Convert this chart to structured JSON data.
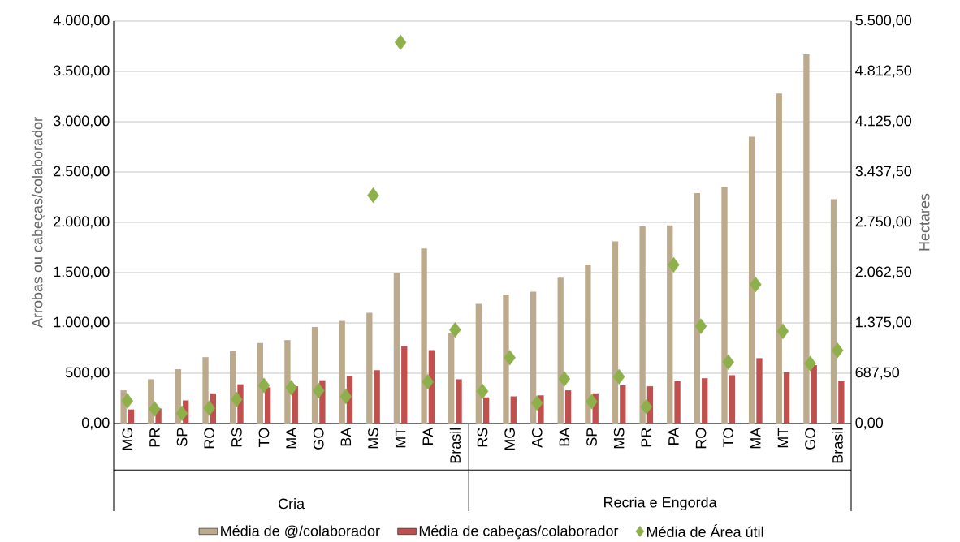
{
  "chart_data": {
    "type": "bar",
    "ylabel": "Arrobas ou cabeças/colaborador",
    "y2label": "Hectares",
    "categories": [
      "MG",
      "PR",
      "SP",
      "RO",
      "RS",
      "TO",
      "MA",
      "GO",
      "BA",
      "MS",
      "MT",
      "PA",
      "Brasil",
      "RS",
      "MG",
      "AC",
      "BA",
      "SP",
      "MS",
      "PR",
      "PA",
      "RO",
      "TO",
      "MA",
      "MT",
      "GO",
      "Brasil"
    ],
    "series": [
      {
        "name": "Média de @/colaborador",
        "color": "#bcaa8c",
        "values": [
          330,
          440,
          540,
          660,
          720,
          800,
          830,
          960,
          1020,
          1100,
          1500,
          1740,
          900,
          1190,
          1280,
          1310,
          1450,
          1580,
          1810,
          1960,
          1970,
          2290,
          2350,
          2850,
          3280,
          3670,
          2230
        ]
      },
      {
        "name": "Média de cabeças/colaborador",
        "color": "#c0504d",
        "values": [
          140,
          150,
          230,
          300,
          390,
          360,
          370,
          430,
          470,
          530,
          770,
          730,
          440,
          260,
          270,
          280,
          330,
          300,
          380,
          370,
          420,
          450,
          480,
          650,
          510,
          580,
          420
        ]
      },
      {
        "name": "Média de Área útil",
        "type": "scatter",
        "axis": "y2",
        "marker": "diamond",
        "color": "#8db04a",
        "values": [
          310,
          200,
          140,
          210,
          330,
          520,
          490,
          450,
          370,
          3120,
          5210,
          570,
          1280,
          440,
          900,
          280,
          610,
          300,
          640,
          230,
          2170,
          1330,
          840,
          1900,
          1260,
          820,
          1000
        ]
      }
    ],
    "ylim": [
      0,
      4000
    ],
    "yticks": [
      {
        "value": 0,
        "label": "0,00"
      },
      {
        "value": 500,
        "label": "500,00"
      },
      {
        "value": 1000,
        "label": "1.000,00"
      },
      {
        "value": 1500,
        "label": "1.500,00"
      },
      {
        "value": 2000,
        "label": "2.000,00"
      },
      {
        "value": 2500,
        "label": "2.500,00"
      },
      {
        "value": 3000,
        "label": "3.000,00"
      },
      {
        "value": 3500,
        "label": "3.500,00"
      },
      {
        "value": 4000,
        "label": "4.000,00"
      }
    ],
    "y2lim": [
      0,
      5500
    ],
    "y2ticks": [
      {
        "value": 0,
        "label": "0,00"
      },
      {
        "value": 687.5,
        "label": "687,50"
      },
      {
        "value": 1375,
        "label": "1.375,00"
      },
      {
        "value": 2062.5,
        "label": "2.062,50"
      },
      {
        "value": 2750,
        "label": "2.750,00"
      },
      {
        "value": 3437.5,
        "label": "3.437,50"
      },
      {
        "value": 4125,
        "label": "4.125,00"
      },
      {
        "value": 4812.5,
        "label": "4.812,50"
      },
      {
        "value": 5500,
        "label": "5.500,00"
      }
    ],
    "annotations": [
      "Cria",
      "Recria e Engorda"
    ],
    "grid": "y",
    "legend": "bottom"
  }
}
